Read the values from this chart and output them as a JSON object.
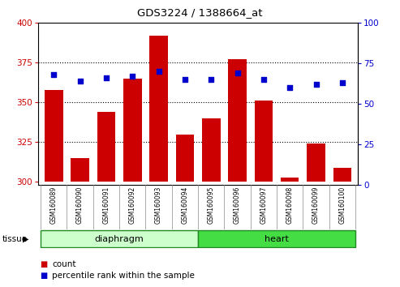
{
  "title": "GDS3224 / 1388664_at",
  "samples": [
    "GSM160089",
    "GSM160090",
    "GSM160091",
    "GSM160092",
    "GSM160093",
    "GSM160094",
    "GSM160095",
    "GSM160096",
    "GSM160097",
    "GSM160098",
    "GSM160099",
    "GSM160100"
  ],
  "counts": [
    358,
    315,
    344,
    365,
    392,
    330,
    340,
    377,
    351,
    303,
    324,
    309
  ],
  "percentiles": [
    68,
    64,
    66,
    67,
    70,
    65,
    65,
    69,
    65,
    60,
    62,
    63
  ],
  "groups": [
    {
      "name": "diaphragm",
      "start": 0,
      "end": 6,
      "color": "#ccffcc",
      "border_color": "#228822"
    },
    {
      "name": "heart",
      "start": 6,
      "end": 12,
      "color": "#44dd44",
      "border_color": "#228822"
    }
  ],
  "ylim_left": [
    298,
    400
  ],
  "yticks_left": [
    300,
    325,
    350,
    375,
    400
  ],
  "ylim_right": [
    0,
    100
  ],
  "yticks_right": [
    0,
    25,
    50,
    75,
    100
  ],
  "bar_color": "#cc0000",
  "dot_color": "#0000cc",
  "bar_bottom": 300,
  "grid_color": "#000000",
  "bg_color": "#ffffff",
  "plot_bg": "#ffffff",
  "tick_label_color_left": "#cc0000",
  "tick_label_color_right": "#0000cc",
  "xlabel_area_color": "#d0d0d0",
  "legend_count_color": "#cc0000",
  "legend_pct_color": "#0000cc"
}
